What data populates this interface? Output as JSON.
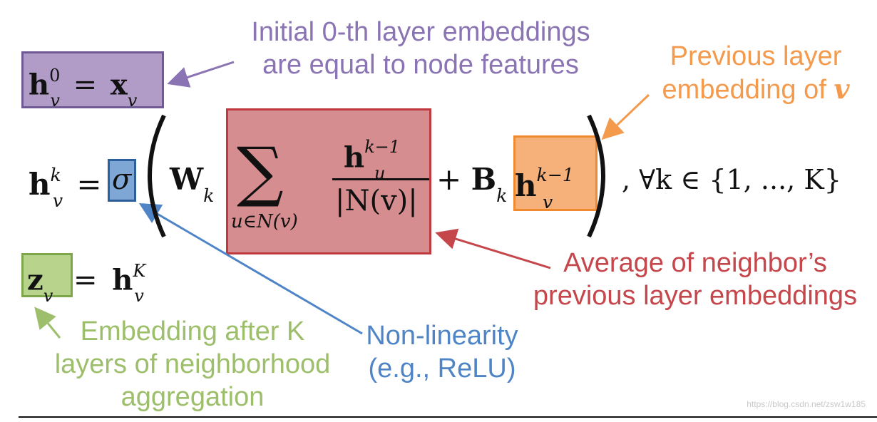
{
  "annotations": {
    "initial": [
      "Initial 0-th layer embeddings",
      "are equal to node features"
    ],
    "previous": [
      "Previous layer",
      "embedding of "
    ],
    "previous_var": "v",
    "average": [
      "Average of neighbor’s",
      "previous layer embeddings"
    ],
    "nonlinearity": [
      "Non-linearity",
      "(e.g., ReLU)"
    ],
    "embedding": [
      "Embedding after K",
      "layers of neighborhood",
      "aggregation"
    ]
  },
  "equations": {
    "h": "h",
    "x": "x",
    "z": "z",
    "v": "v",
    "u": "u",
    "k": "k",
    "K": "K",
    "zero": "0",
    "k_minus_1": "k−1",
    "equals": "=",
    "sigma": "σ",
    "W": "W",
    "B": "B",
    "plus": "+",
    "sum": "∑",
    "sum_sub": "u∈N(v)",
    "denominator": "|N(v)|",
    "forall": ", ∀k ∈ {1, ..., K}"
  },
  "watermark": "https://blog.csdn.net/zsw1w185",
  "colors": {
    "purple_text": "#8a74b3",
    "purple_fill": "#b09cc6",
    "purple_border": "#6f5a96",
    "orange_text": "#f39a4d",
    "orange_fill": "#f6b07a",
    "orange_border": "#f08a30",
    "red_text": "#c5464b",
    "red_fill": "#d68d8f",
    "red_border": "#c0393e",
    "blue_text": "#4f85c6",
    "blue_fill": "#7fa7d6",
    "blue_border": "#2f5f9a",
    "green_text": "#9dbf6b",
    "green_fill": "#b8d48c",
    "green_border": "#7ea64a"
  }
}
